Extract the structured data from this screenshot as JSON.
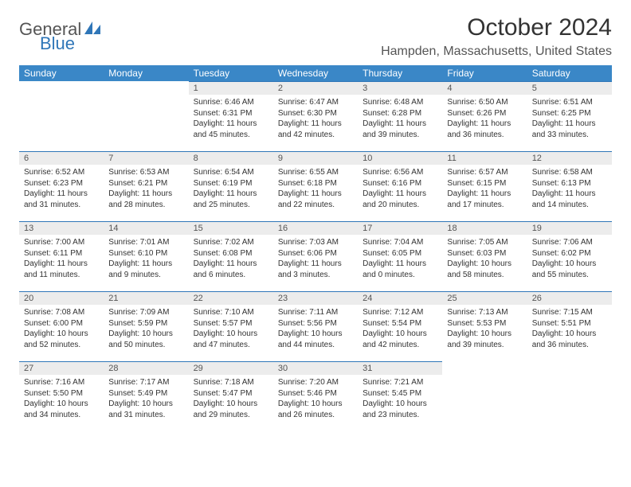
{
  "logo": {
    "text1": "General",
    "text2": "Blue"
  },
  "title": "October 2024",
  "location": "Hampden, Massachusetts, United States",
  "colors": {
    "header_bg": "#3a87c7",
    "daynum_bg": "#ececec",
    "border": "#2f76b8",
    "text": "#333333"
  },
  "weekdays": [
    "Sunday",
    "Monday",
    "Tuesday",
    "Wednesday",
    "Thursday",
    "Friday",
    "Saturday"
  ],
  "weeks": [
    [
      null,
      null,
      {
        "n": "1",
        "sunrise": "6:46 AM",
        "sunset": "6:31 PM",
        "dl": "11 hours and 45 minutes."
      },
      {
        "n": "2",
        "sunrise": "6:47 AM",
        "sunset": "6:30 PM",
        "dl": "11 hours and 42 minutes."
      },
      {
        "n": "3",
        "sunrise": "6:48 AM",
        "sunset": "6:28 PM",
        "dl": "11 hours and 39 minutes."
      },
      {
        "n": "4",
        "sunrise": "6:50 AM",
        "sunset": "6:26 PM",
        "dl": "11 hours and 36 minutes."
      },
      {
        "n": "5",
        "sunrise": "6:51 AM",
        "sunset": "6:25 PM",
        "dl": "11 hours and 33 minutes."
      }
    ],
    [
      {
        "n": "6",
        "sunrise": "6:52 AM",
        "sunset": "6:23 PM",
        "dl": "11 hours and 31 minutes."
      },
      {
        "n": "7",
        "sunrise": "6:53 AM",
        "sunset": "6:21 PM",
        "dl": "11 hours and 28 minutes."
      },
      {
        "n": "8",
        "sunrise": "6:54 AM",
        "sunset": "6:19 PM",
        "dl": "11 hours and 25 minutes."
      },
      {
        "n": "9",
        "sunrise": "6:55 AM",
        "sunset": "6:18 PM",
        "dl": "11 hours and 22 minutes."
      },
      {
        "n": "10",
        "sunrise": "6:56 AM",
        "sunset": "6:16 PM",
        "dl": "11 hours and 20 minutes."
      },
      {
        "n": "11",
        "sunrise": "6:57 AM",
        "sunset": "6:15 PM",
        "dl": "11 hours and 17 minutes."
      },
      {
        "n": "12",
        "sunrise": "6:58 AM",
        "sunset": "6:13 PM",
        "dl": "11 hours and 14 minutes."
      }
    ],
    [
      {
        "n": "13",
        "sunrise": "7:00 AM",
        "sunset": "6:11 PM",
        "dl": "11 hours and 11 minutes."
      },
      {
        "n": "14",
        "sunrise": "7:01 AM",
        "sunset": "6:10 PM",
        "dl": "11 hours and 9 minutes."
      },
      {
        "n": "15",
        "sunrise": "7:02 AM",
        "sunset": "6:08 PM",
        "dl": "11 hours and 6 minutes."
      },
      {
        "n": "16",
        "sunrise": "7:03 AM",
        "sunset": "6:06 PM",
        "dl": "11 hours and 3 minutes."
      },
      {
        "n": "17",
        "sunrise": "7:04 AM",
        "sunset": "6:05 PM",
        "dl": "11 hours and 0 minutes."
      },
      {
        "n": "18",
        "sunrise": "7:05 AM",
        "sunset": "6:03 PM",
        "dl": "10 hours and 58 minutes."
      },
      {
        "n": "19",
        "sunrise": "7:06 AM",
        "sunset": "6:02 PM",
        "dl": "10 hours and 55 minutes."
      }
    ],
    [
      {
        "n": "20",
        "sunrise": "7:08 AM",
        "sunset": "6:00 PM",
        "dl": "10 hours and 52 minutes."
      },
      {
        "n": "21",
        "sunrise": "7:09 AM",
        "sunset": "5:59 PM",
        "dl": "10 hours and 50 minutes."
      },
      {
        "n": "22",
        "sunrise": "7:10 AM",
        "sunset": "5:57 PM",
        "dl": "10 hours and 47 minutes."
      },
      {
        "n": "23",
        "sunrise": "7:11 AM",
        "sunset": "5:56 PM",
        "dl": "10 hours and 44 minutes."
      },
      {
        "n": "24",
        "sunrise": "7:12 AM",
        "sunset": "5:54 PM",
        "dl": "10 hours and 42 minutes."
      },
      {
        "n": "25",
        "sunrise": "7:13 AM",
        "sunset": "5:53 PM",
        "dl": "10 hours and 39 minutes."
      },
      {
        "n": "26",
        "sunrise": "7:15 AM",
        "sunset": "5:51 PM",
        "dl": "10 hours and 36 minutes."
      }
    ],
    [
      {
        "n": "27",
        "sunrise": "7:16 AM",
        "sunset": "5:50 PM",
        "dl": "10 hours and 34 minutes."
      },
      {
        "n": "28",
        "sunrise": "7:17 AM",
        "sunset": "5:49 PM",
        "dl": "10 hours and 31 minutes."
      },
      {
        "n": "29",
        "sunrise": "7:18 AM",
        "sunset": "5:47 PM",
        "dl": "10 hours and 29 minutes."
      },
      {
        "n": "30",
        "sunrise": "7:20 AM",
        "sunset": "5:46 PM",
        "dl": "10 hours and 26 minutes."
      },
      {
        "n": "31",
        "sunrise": "7:21 AM",
        "sunset": "5:45 PM",
        "dl": "10 hours and 23 minutes."
      },
      null,
      null
    ]
  ]
}
